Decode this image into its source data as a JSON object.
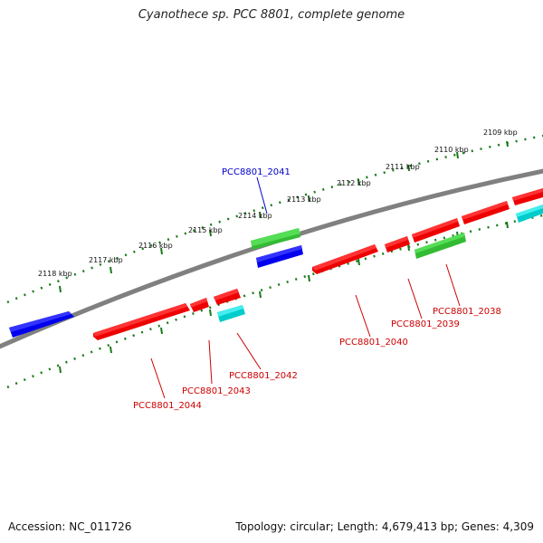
{
  "title": "Cyanothece sp. PCC 8801, complete genome",
  "footer": {
    "accession": "Accession: NC_011726",
    "summary": "Topology: circular; Length: 4,679,413 bp; Genes: 4,309"
  },
  "colors": {
    "backbone": "#808080",
    "tick": "#1a7a1a",
    "forward_cds": "#ff0000",
    "reverse_cds": "#ff0000",
    "rna_green": "#33bb33",
    "blue_feature": "#0000ee",
    "cyan_feature": "#00e5e5",
    "label_red": "#cc0000",
    "label_blue": "#0000cc"
  },
  "scale_labels": [
    "2109 kbp",
    "2110 kbp",
    "2111 kbp",
    "2112 kbp",
    "2113 kbp",
    "2114 kbp",
    "2115 kbp",
    "2116 kbp",
    "2117 kbp",
    "2118 kbp"
  ],
  "gene_labels": [
    {
      "text": "PCC8801_2041",
      "color": "blue"
    },
    {
      "text": "PCC8801_2038",
      "color": "red"
    },
    {
      "text": "PCC8801_2039",
      "color": "red"
    },
    {
      "text": "PCC8801_2040",
      "color": "red"
    },
    {
      "text": "PCC8801_2042",
      "color": "red"
    },
    {
      "text": "PCC8801_2043",
      "color": "red"
    },
    {
      "text": "PCC8801_2044",
      "color": "red"
    }
  ]
}
